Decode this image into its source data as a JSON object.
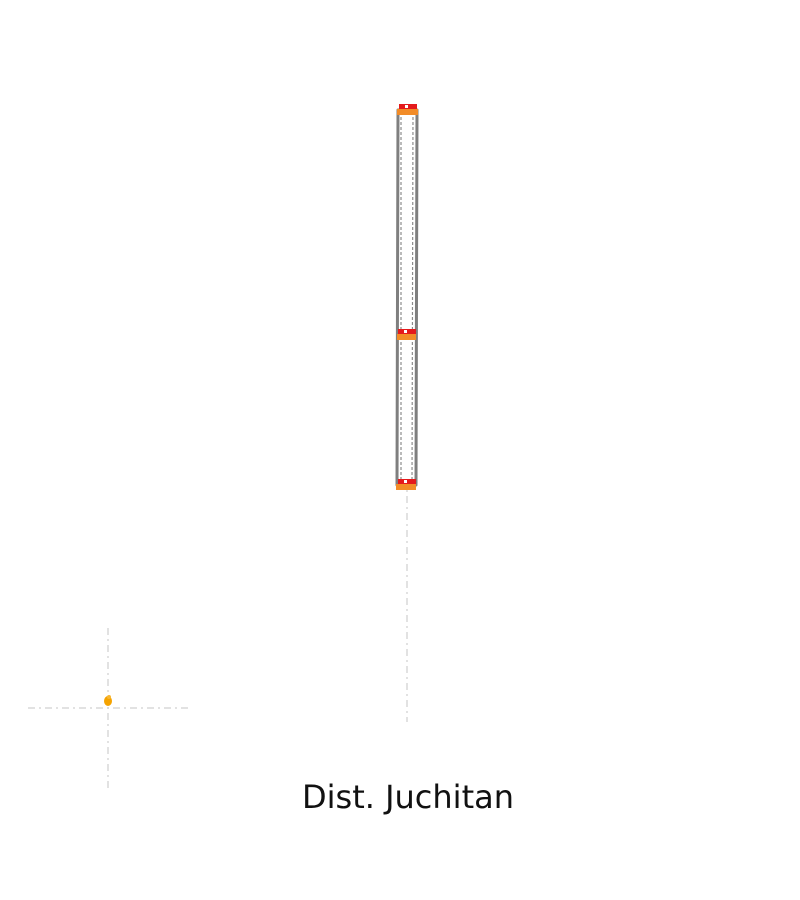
{
  "diagram": {
    "label": "Dist. Juchitan",
    "colors": {
      "guide_line": "#d9d9d9",
      "road_outline": "#7f7f7f",
      "road_fill": "#ffffff",
      "stop_marker_top": "#e41a1c",
      "stop_marker_bottom": "#f28c28",
      "point_marker": "#f5a300"
    }
  }
}
